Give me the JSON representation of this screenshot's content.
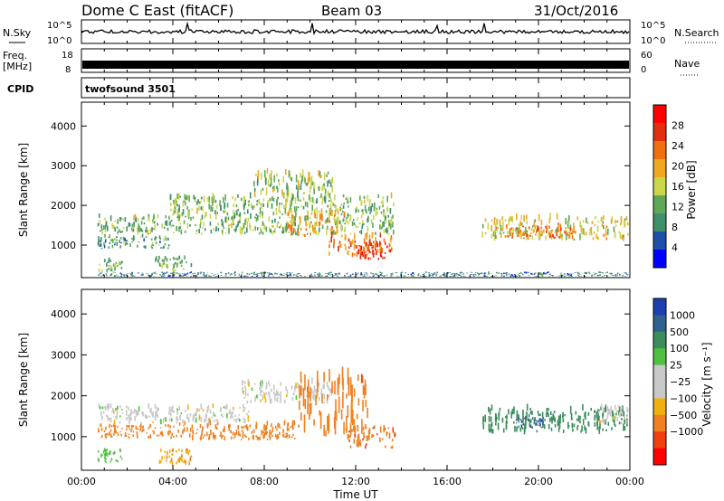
{
  "header": {
    "station": "Dome C East (fitACF)",
    "beam": "Beam 03",
    "date": "31/Oct/2016"
  },
  "panels": {
    "nsky": {
      "label": "N.Sky",
      "right_label": "N.Search",
      "ticks": [
        "10^5",
        "10^0"
      ]
    },
    "freq": {
      "label_top": "Freq.",
      "label_bottom": "[MHz]",
      "ticks": [
        "18",
        "8"
      ],
      "right_ticks": [
        "60",
        "0"
      ],
      "right_label": "Nave"
    },
    "cpid": {
      "label": "CPID",
      "value": "twofsound 3501"
    }
  },
  "colors": {
    "power": [
      "#0000ff",
      "#1d4fa8",
      "#3f8f6a",
      "#5fa85a",
      "#cbd64a",
      "#f0a820",
      "#f07010",
      "#e03010",
      "#ff0000"
    ],
    "velocity": [
      "#ff0000",
      "#f04010",
      "#f08020",
      "#f0b010",
      "#c8c8c8",
      "#c8c8c8",
      "#50c040",
      "#3c8c5c",
      "#306090",
      "#1e3fb0"
    ]
  },
  "chart_data": [
    {
      "type": "heatmap",
      "name": "power",
      "ylabel": "Slant Range [km]",
      "xlabel": "Time UT",
      "x_ticks": [
        "00:00",
        "04:00",
        "08:00",
        "12:00",
        "16:00",
        "20:00",
        "00:00"
      ],
      "xlim": [
        0,
        24
      ],
      "y_ticks": [
        1000,
        2000,
        3000,
        4000
      ],
      "ylim": [
        180,
        4600
      ],
      "colorbar": {
        "label": "Power [dB]",
        "ticks": [
          4,
          8,
          12,
          16,
          20,
          24,
          28
        ],
        "range": [
          0,
          32
        ]
      },
      "regions": [
        {
          "t0": 0.7,
          "t1": 13.7,
          "r0": 1250,
          "r1": 1700,
          "v": 13
        },
        {
          "t0": 0.7,
          "t1": 3.8,
          "r0": 900,
          "r1": 1200,
          "v": 11
        },
        {
          "t0": 0.7,
          "t1": 1.8,
          "r0": 300,
          "r1": 600,
          "v": 12
        },
        {
          "t0": 3.2,
          "t1": 4.8,
          "r0": 300,
          "r1": 650,
          "v": 12
        },
        {
          "t0": 3.8,
          "t1": 13.7,
          "r0": 1700,
          "r1": 2200,
          "v": 13
        },
        {
          "t0": 7.5,
          "t1": 11.0,
          "r0": 2200,
          "r1": 2800,
          "v": 14
        },
        {
          "t0": 9.0,
          "t1": 11.5,
          "r0": 1200,
          "r1": 1800,
          "v": 20
        },
        {
          "t0": 10.8,
          "t1": 13.7,
          "r0": 700,
          "r1": 1200,
          "v": 23
        },
        {
          "t0": 12.0,
          "t1": 13.5,
          "r0": 600,
          "r1": 1000,
          "v": 27
        },
        {
          "t0": 17.5,
          "t1": 23.9,
          "r0": 1100,
          "r1": 1650,
          "v": 17
        },
        {
          "t0": 18.5,
          "t1": 21.5,
          "r0": 1150,
          "r1": 1450,
          "v": 23
        },
        {
          "t0": 0.7,
          "t1": 23.9,
          "r0": 180,
          "r1": 300,
          "v": 8
        }
      ]
    },
    {
      "type": "heatmap",
      "name": "velocity",
      "ylabel": "Slant Range [km]",
      "xlabel": "Time UT",
      "x_ticks": [
        "00:00",
        "04:00",
        "08:00",
        "12:00",
        "16:00",
        "20:00",
        "00:00"
      ],
      "xlim": [
        0,
        24
      ],
      "y_ticks": [
        1000,
        2000,
        3000,
        4000
      ],
      "ylim": [
        180,
        4600
      ],
      "colorbar": {
        "label": "Velocity [m s⁻¹]",
        "ticks": [
          "1000",
          "500",
          "100",
          "25",
          "−25",
          "−100",
          "−500",
          "−1000"
        ]
      },
      "regions": [
        {
          "t0": 0.7,
          "t1": 7.5,
          "r0": 1300,
          "r1": 1700,
          "v": 0
        },
        {
          "t0": 7.0,
          "t1": 11.0,
          "r0": 1800,
          "r1": 2300,
          "v": 0
        },
        {
          "t0": 0.7,
          "t1": 3.8,
          "r0": 950,
          "r1": 1250,
          "v": -200
        },
        {
          "t0": 3.8,
          "t1": 9.5,
          "r0": 900,
          "r1": 1300,
          "v": -300
        },
        {
          "t0": 9.5,
          "t1": 12.5,
          "r0": 1000,
          "r1": 2400,
          "v": -350
        },
        {
          "t0": 11.5,
          "t1": 13.7,
          "r0": 700,
          "r1": 1200,
          "v": -400
        },
        {
          "t0": 0.7,
          "t1": 1.8,
          "r0": 350,
          "r1": 650,
          "v": 60
        },
        {
          "t0": 3.3,
          "t1": 4.8,
          "r0": 300,
          "r1": 650,
          "v": -80
        },
        {
          "t0": 17.5,
          "t1": 23.9,
          "r0": 1050,
          "r1": 1650,
          "v": 300
        },
        {
          "t0": 19.0,
          "t1": 20.3,
          "r0": 1200,
          "r1": 1450,
          "v": 800
        },
        {
          "t0": 22.5,
          "t1": 23.9,
          "r0": 1300,
          "r1": 1700,
          "v": 0
        }
      ]
    }
  ]
}
